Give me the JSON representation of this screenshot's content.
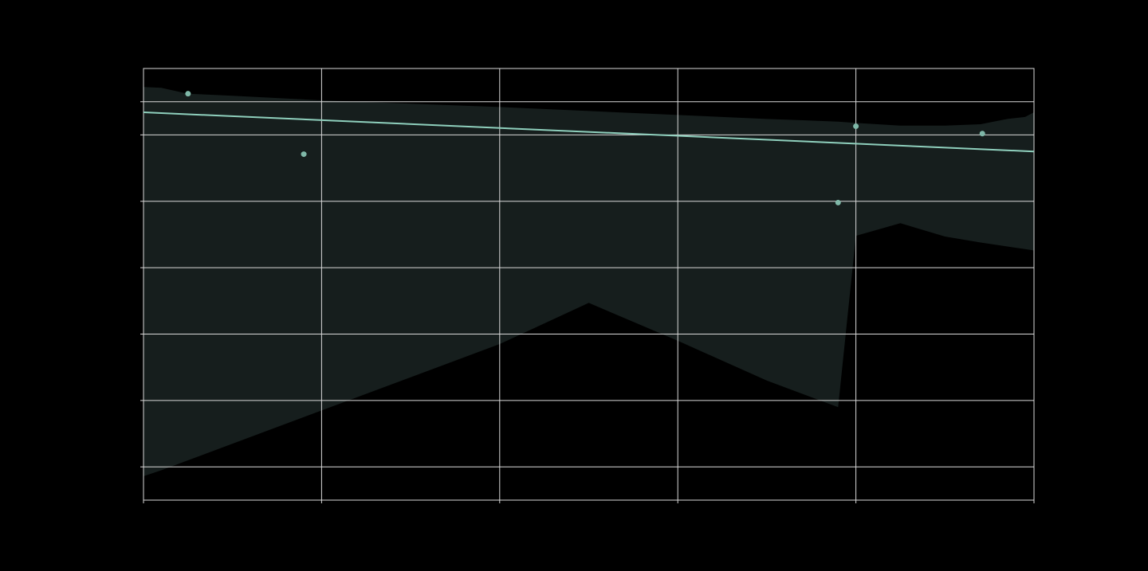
{
  "chart_data": {
    "type": "scatter",
    "title": "",
    "xlabel": "",
    "ylabel": "",
    "xlim": [
      0,
      10
    ],
    "ylim": [
      -6,
      0.5
    ],
    "x_ticks": [
      0,
      2,
      4,
      6,
      8,
      10
    ],
    "y_ticks": [
      -5.5,
      -4.5,
      -3.5,
      -2.5,
      -1.5,
      -0.5,
      0
    ],
    "grid": true,
    "legend": "none",
    "points": [
      {
        "x": 0.5,
        "y": 0.12
      },
      {
        "x": 1.8,
        "y": -0.79
      },
      {
        "x": 7.8,
        "y": -1.52
      },
      {
        "x": 8.0,
        "y": -0.37
      },
      {
        "x": 9.42,
        "y": -0.48
      }
    ],
    "regression_line": {
      "x": [
        0,
        10
      ],
      "y": [
        -0.16,
        -0.75
      ]
    },
    "confidence_band": {
      "x": [
        0,
        0.2,
        0.5,
        1,
        2,
        3,
        4,
        5,
        6,
        7,
        7.8,
        8,
        8.5,
        9,
        9.4,
        9.7,
        9.9,
        10
      ],
      "upper": [
        0.22,
        0.21,
        0.12,
        0.09,
        0.02,
        -0.03,
        -0.08,
        -0.14,
        -0.2,
        -0.26,
        -0.3,
        -0.32,
        -0.36,
        -0.36,
        -0.34,
        -0.26,
        -0.23,
        -0.16
      ],
      "lower": [
        -5.64,
        -5.55,
        -5.4,
        -5.15,
        -4.65,
        -4.15,
        -3.65,
        -3.03,
        -3.6,
        -4.2,
        -4.6,
        -2.02,
        -1.83,
        -2.03,
        -2.12,
        -2.18,
        -2.22,
        -2.24
      ]
    },
    "colors": {
      "background": "#000000",
      "grid": "#d9d9d9",
      "points": "#7fb8a8",
      "line": "#8fd0bd",
      "band": "#161e1d"
    }
  }
}
